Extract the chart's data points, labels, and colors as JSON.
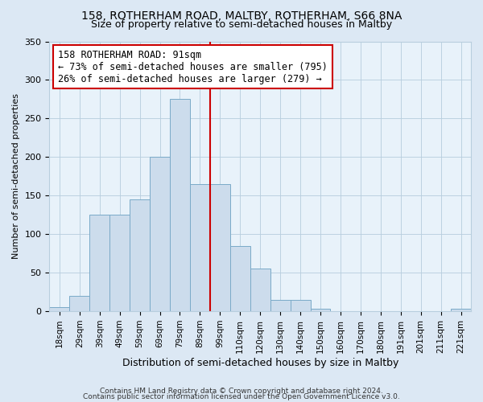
{
  "title1": "158, ROTHERHAM ROAD, MALTBY, ROTHERHAM, S66 8NA",
  "title2": "Size of property relative to semi-detached houses in Maltby",
  "xlabel": "Distribution of semi-detached houses by size in Maltby",
  "ylabel": "Number of semi-detached properties",
  "bins": [
    "18sqm",
    "29sqm",
    "39sqm",
    "49sqm",
    "59sqm",
    "69sqm",
    "79sqm",
    "89sqm",
    "99sqm",
    "110sqm",
    "120sqm",
    "130sqm",
    "140sqm",
    "150sqm",
    "160sqm",
    "170sqm",
    "180sqm",
    "191sqm",
    "201sqm",
    "211sqm",
    "221sqm"
  ],
  "counts": [
    5,
    20,
    125,
    125,
    145,
    200,
    275,
    165,
    165,
    85,
    55,
    15,
    15,
    3,
    0,
    0,
    0,
    0,
    0,
    0,
    3
  ],
  "bar_color": "#ccdcec",
  "bar_edge_color": "#7aaac8",
  "vline_color": "#cc0000",
  "annotation_box_color": "#cc0000",
  "annotation_line1": "158 ROTHERHAM ROAD: 91sqm",
  "annotation_line2": "← 73% of semi-detached houses are smaller (795)",
  "annotation_line3": "26% of semi-detached houses are larger (279) →",
  "annotation_fontsize": 8.5,
  "ylim": [
    0,
    350
  ],
  "yticks": [
    0,
    50,
    100,
    150,
    200,
    250,
    300,
    350
  ],
  "footer1": "Contains HM Land Registry data © Crown copyright and database right 2024.",
  "footer2": "Contains public sector information licensed under the Open Government Licence v3.0.",
  "bg_color": "#dce8f4",
  "plot_bg_color": "#e8f2fa",
  "grid_color": "#b8cede",
  "title1_fontsize": 10,
  "title2_fontsize": 9,
  "xlabel_fontsize": 9,
  "ylabel_fontsize": 8,
  "xtick_fontsize": 7.5,
  "ytick_fontsize": 8,
  "footer_fontsize": 6.5
}
